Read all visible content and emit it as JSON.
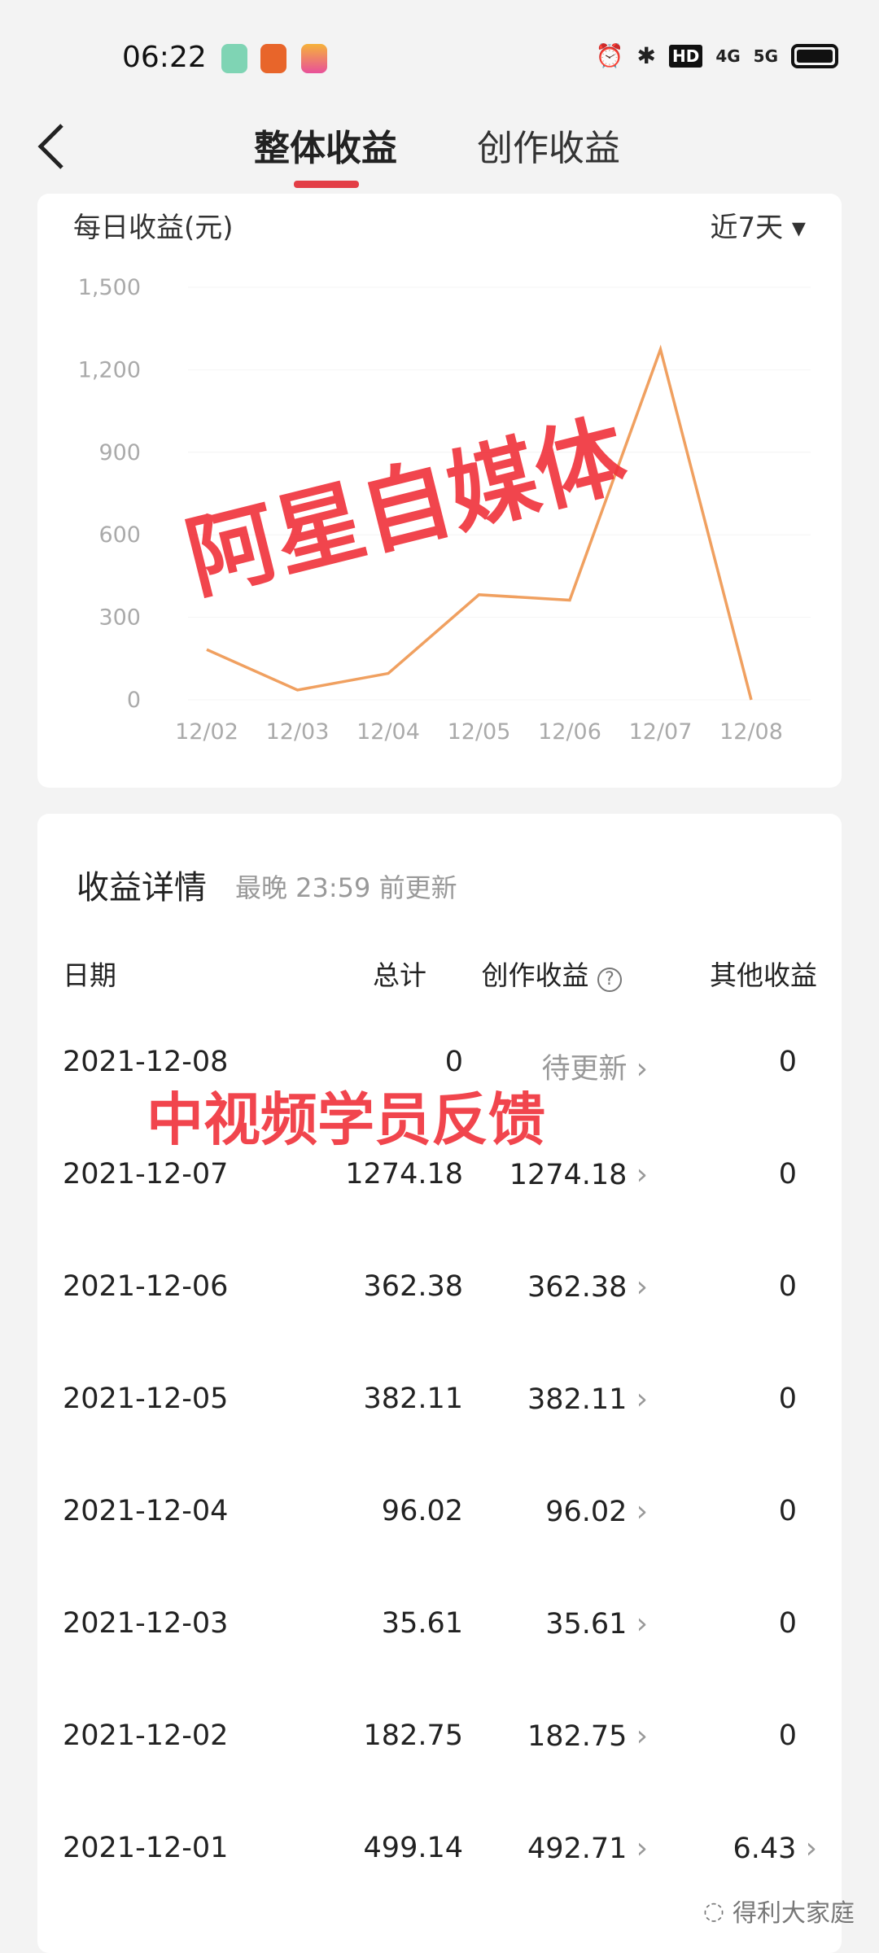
{
  "status_bar": {
    "time": "06:22",
    "hd_label": "HD",
    "net1": "4G",
    "net2": "5G"
  },
  "nav": {
    "tabs": [
      {
        "label": "整体收益",
        "active": true
      },
      {
        "label": "创作收益",
        "active": false
      }
    ],
    "accent": "#e33e46"
  },
  "chart_card": {
    "title": "每日收益(元)",
    "range": "近7天"
  },
  "chart_data": {
    "type": "line",
    "title": "每日收益(元)",
    "categories": [
      "12/02",
      "12/03",
      "12/04",
      "12/05",
      "12/06",
      "12/07",
      "12/08"
    ],
    "values": [
      182.75,
      35.61,
      96.02,
      382.11,
      362.38,
      1274.18,
      0
    ],
    "yticks": [
      "0",
      "300",
      "600",
      "900",
      "1,200",
      "1,500"
    ],
    "ylim": [
      0,
      1500
    ],
    "color": "#f0a060",
    "grid": true
  },
  "details": {
    "title": "收益详情",
    "subtitle": "最晚 23:59 前更新",
    "headers": [
      "日期",
      "总计",
      "创作收益",
      "其他收益"
    ],
    "rows": [
      {
        "date": "2021-12-08",
        "total": "0",
        "creation": "待更新",
        "other": "0",
        "other_link": false
      },
      {
        "date": "2021-12-07",
        "total": "1274.18",
        "creation": "1274.18",
        "other": "0",
        "other_link": false
      },
      {
        "date": "2021-12-06",
        "total": "362.38",
        "creation": "362.38",
        "other": "0",
        "other_link": false
      },
      {
        "date": "2021-12-05",
        "total": "382.11",
        "creation": "382.11",
        "other": "0",
        "other_link": false
      },
      {
        "date": "2021-12-04",
        "total": "96.02",
        "creation": "96.02",
        "other": "0",
        "other_link": false
      },
      {
        "date": "2021-12-03",
        "total": "35.61",
        "creation": "35.61",
        "other": "0",
        "other_link": false
      },
      {
        "date": "2021-12-02",
        "total": "182.75",
        "creation": "182.75",
        "other": "0",
        "other_link": false
      },
      {
        "date": "2021-12-01",
        "total": "499.14",
        "creation": "492.71",
        "other": "6.43",
        "other_link": true
      }
    ]
  },
  "watermarks": [
    "阿星自媒体",
    "中视频学员反馈"
  ],
  "footer": {
    "account": "得利大家庭"
  }
}
